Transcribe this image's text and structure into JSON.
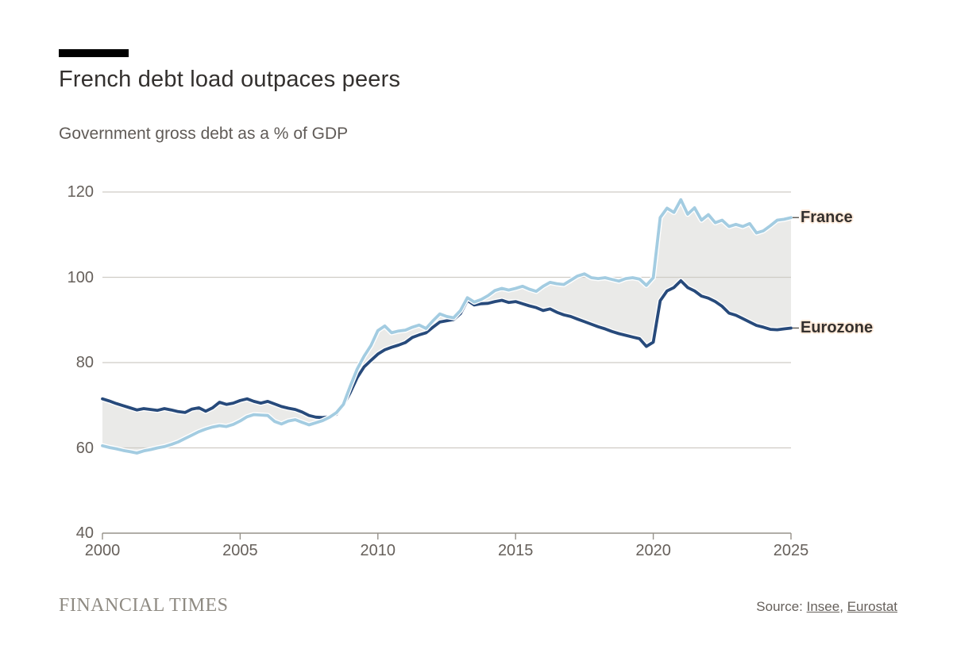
{
  "header": {
    "title": "French debt load outpaces peers",
    "subtitle": "Government gross debt as a % of GDP"
  },
  "chart_data": {
    "type": "line",
    "title": "French debt load outpaces peers",
    "subtitle": "Government gross debt as a % of GDP",
    "x_start": 2000,
    "x_step": 0.25,
    "xlim": [
      2000,
      2025
    ],
    "ylim": [
      40,
      120
    ],
    "x_ticks": [
      2000,
      2005,
      2010,
      2015,
      2020,
      2025
    ],
    "y_ticks": [
      120,
      100,
      80,
      60,
      40
    ],
    "grid": true,
    "legend_position": "labels-at-line-ends-right",
    "band_between_series": true,
    "colors": {
      "france_line": "#a3cce1",
      "eurozone_line": "#274a7b",
      "band": "#eaeae8",
      "grid": "#cfccc5",
      "axis": "#96928a",
      "label_halo": "#ffeada",
      "text": "#33302e",
      "muted_text": "#66605b"
    },
    "series": [
      {
        "name": "France",
        "label": "France",
        "color": "#a3cce1",
        "values": [
          60.5,
          60.1,
          59.8,
          59.4,
          59.1,
          58.8,
          59.3,
          59.6,
          60.0,
          60.3,
          60.8,
          61.4,
          62.2,
          63.0,
          63.8,
          64.4,
          64.9,
          65.2,
          65.0,
          65.5,
          66.3,
          67.3,
          67.8,
          67.7,
          67.6,
          66.2,
          65.6,
          66.3,
          66.6,
          66.0,
          65.4,
          65.9,
          66.4,
          67.2,
          68.3,
          70.2,
          74.5,
          78.5,
          81.5,
          84.0,
          87.5,
          88.6,
          87.0,
          87.4,
          87.6,
          88.3,
          88.8,
          88.0,
          89.8,
          91.4,
          90.8,
          90.5,
          92.2,
          95.2,
          94.2,
          94.8,
          95.7,
          96.9,
          97.4,
          97.0,
          97.4,
          97.9,
          97.2,
          96.7,
          97.9,
          98.8,
          98.5,
          98.3,
          99.3,
          100.3,
          100.8,
          99.9,
          99.7,
          99.9,
          99.5,
          99.1,
          99.7,
          99.9,
          99.6,
          98.1,
          99.9,
          114.0,
          116.2,
          115.2,
          118.2,
          114.8,
          116.3,
          113.4,
          114.7,
          112.8,
          113.4,
          111.9,
          112.4,
          111.9,
          112.6,
          110.4,
          110.9,
          112.1,
          113.4,
          113.6,
          114.0
        ]
      },
      {
        "name": "Eurozone",
        "label": "Eurozone",
        "color": "#274a7b",
        "values": [
          71.5,
          71.0,
          70.4,
          69.9,
          69.4,
          68.9,
          69.2,
          69.0,
          68.8,
          69.2,
          68.9,
          68.5,
          68.3,
          69.1,
          69.4,
          68.6,
          69.4,
          70.7,
          70.2,
          70.5,
          71.1,
          71.5,
          70.9,
          70.5,
          70.9,
          70.3,
          69.7,
          69.3,
          69.0,
          68.4,
          67.6,
          67.2,
          67.1,
          67.3,
          67.9,
          70.0,
          73.0,
          76.5,
          79.0,
          80.5,
          82.0,
          83.0,
          83.6,
          84.1,
          84.7,
          85.9,
          86.5,
          87.0,
          88.3,
          89.5,
          89.8,
          90.1,
          91.5,
          94.6,
          93.5,
          93.8,
          93.9,
          94.3,
          94.6,
          94.1,
          94.3,
          93.8,
          93.3,
          92.9,
          92.2,
          92.6,
          91.8,
          91.2,
          90.8,
          90.2,
          89.6,
          89.0,
          88.4,
          87.9,
          87.3,
          86.8,
          86.4,
          86.0,
          85.6,
          83.8,
          84.8,
          94.5,
          96.8,
          97.6,
          99.2,
          97.6,
          96.8,
          95.6,
          95.1,
          94.3,
          93.2,
          91.6,
          91.1,
          90.3,
          89.5,
          88.7,
          88.3,
          87.8,
          87.7,
          87.9,
          88.1
        ]
      }
    ]
  },
  "footer": {
    "brand": "FINANCIAL TIMES",
    "source_prefix": "Source:",
    "comma": ",",
    "sources": [
      {
        "label": "Insee"
      },
      {
        "label": "Eurostat"
      }
    ]
  }
}
